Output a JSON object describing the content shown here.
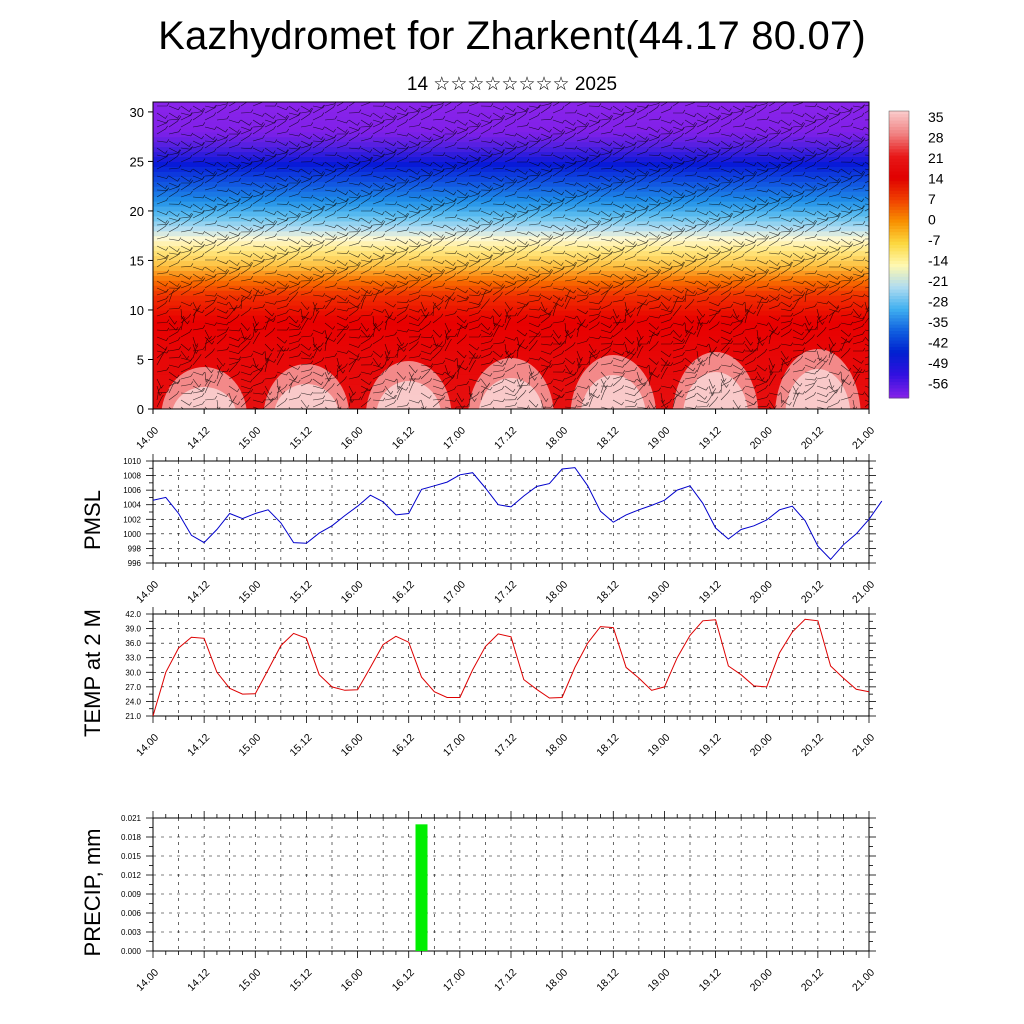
{
  "header": {
    "title": "Kazhydromet for Zharkent(44.17 80.07)",
    "subtitle": "14 ☆☆☆☆☆☆☆☆ 2025"
  },
  "time_labels": [
    "14.00",
    "14.12",
    "15.00",
    "15.12",
    "16.00",
    "16.12",
    "17.00",
    "17.12",
    "18.00",
    "18.12",
    "19.00",
    "19.12",
    "20.00",
    "20.12",
    "21.00"
  ],
  "chart_data": [
    {
      "type": "heatmap",
      "title": "",
      "ylabel": "",
      "ylim": [
        0,
        31
      ],
      "y_ticks": [
        0,
        5,
        10,
        15,
        20,
        25,
        30
      ],
      "colorbar": {
        "labels": [
          "35",
          "28",
          "21",
          "14",
          "7",
          "0",
          "-7",
          "-14",
          "-21",
          "-28",
          "-35",
          "-42",
          "-49",
          "-56"
        ],
        "colors": [
          "#f9c8c8",
          "#f08080",
          "#e81818",
          "#e00000",
          "#f04000",
          "#f89000",
          "#fcd840",
          "#fff8b0",
          "#b0dcf0",
          "#40b0f0",
          "#1060e0",
          "#0020d0",
          "#3010e0",
          "#8020e8"
        ]
      },
      "overlay": "wind barbs"
    },
    {
      "type": "line",
      "ylabel": "PMSL",
      "ylim": [
        996,
        1010
      ],
      "y_ticks": [
        "996",
        "998",
        "1000",
        "1002",
        "1004",
        "1006",
        "1008",
        "1010"
      ],
      "color": "#0000cc",
      "values": [
        1004.6,
        1005.0,
        1002.8,
        999.8,
        998.8,
        1000.6,
        1002.8,
        1002.1,
        1002.8,
        1003.3,
        1001.5,
        998.8,
        998.7,
        1000.1,
        1001.1,
        1002.5,
        1003.8,
        1005.3,
        1004.4,
        1002.6,
        1002.8,
        1006.1,
        1006.6,
        1007.1,
        1008.1,
        1008.4,
        1006.3,
        1004.0,
        1003.7,
        1005.2,
        1006.5,
        1006.9,
        1008.9,
        1009.1,
        1006.6,
        1003.1,
        1001.6,
        1002.6,
        1003.3,
        1003.9,
        1004.6,
        1006.0,
        1006.6,
        1004.2,
        1000.8,
        999.3,
        1000.6,
        1001.1,
        1001.9,
        1003.3,
        1003.8,
        1001.8,
        998.3,
        996.5,
        998.5,
        1000.0,
        1002.0,
        1004.5
      ]
    },
    {
      "type": "line",
      "ylabel": "TEMP at 2 M",
      "ylim": [
        21,
        42
      ],
      "y_ticks": [
        "21.0",
        "24.0",
        "27.0",
        "30.0",
        "33.0",
        "36.0",
        "39.0",
        "42.0"
      ],
      "color": "#dd0000",
      "values": [
        21.0,
        30.0,
        35.0,
        37.2,
        37.0,
        30.0,
        26.7,
        25.5,
        25.6,
        30.5,
        35.5,
        38.0,
        37.0,
        29.5,
        27.0,
        26.3,
        26.4,
        31.0,
        35.7,
        37.4,
        36.2,
        29.0,
        26.0,
        24.8,
        24.8,
        30.5,
        35.3,
        37.9,
        37.3,
        28.5,
        26.5,
        24.7,
        24.8,
        31.0,
        36.0,
        39.4,
        39.2,
        31.0,
        28.8,
        26.3,
        27.0,
        33.0,
        37.6,
        40.6,
        40.8,
        31.3,
        29.5,
        27.2,
        27.0,
        34.0,
        38.3,
        40.9,
        40.6,
        31.3,
        28.8,
        26.5,
        26.0
      ]
    },
    {
      "type": "bar",
      "ylabel": "PRECIP, mm",
      "ylim": [
        0,
        0.021
      ],
      "y_ticks": [
        "0.000",
        "0.003",
        "0.006",
        "0.009",
        "0.012",
        "0.015",
        "0.018",
        "0.021"
      ],
      "color": "#00ee00",
      "x_hours": [
        63
      ],
      "values": [
        0.02
      ]
    }
  ]
}
